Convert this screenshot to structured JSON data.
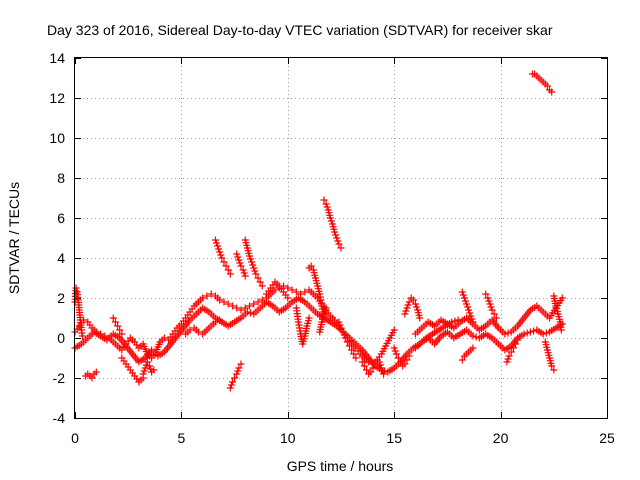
{
  "chart_data": {
    "type": "scatter",
    "title": "Day 323 of 2016, Sidereal Day-to-day VTEC variation (SDTVAR) for receiver skar",
    "xlabel": "GPS time / hours",
    "ylabel": "SDTVAR / TECUs",
    "xlim": [
      0,
      25
    ],
    "ylim": [
      -4,
      14
    ],
    "xticks": [
      0,
      5,
      10,
      15,
      20,
      25
    ],
    "yticks": [
      -4,
      -2,
      0,
      2,
      4,
      6,
      8,
      10,
      12,
      14
    ],
    "grid": true,
    "legend": "none",
    "marker": "plus",
    "series": [
      {
        "name": "SDTVAR",
        "color": "#ff0000",
        "segments": [
          {
            "x": [
              0.0,
              0.05,
              0.1,
              0.15,
              0.2,
              0.25,
              0.3,
              0.35
            ],
            "y": [
              1.8,
              2.5,
              2.3,
              1.9,
              1.4,
              0.9,
              0.4,
              0.1
            ]
          },
          {
            "x": [
              0.0,
              0.2,
              0.4,
              0.6,
              0.8,
              1.0,
              1.2,
              1.4,
              1.6,
              1.8,
              2.0,
              2.2,
              2.4,
              2.6,
              2.8,
              3.0,
              3.2,
              3.4,
              3.6,
              3.8,
              4.0,
              4.2,
              4.4,
              4.6,
              4.8,
              5.0,
              5.2,
              5.4,
              5.6,
              5.8,
              6.0,
              6.2,
              6.4,
              6.6,
              6.8,
              7.0,
              7.2,
              7.4,
              7.6,
              7.8,
              8.0,
              8.2,
              8.4,
              8.6,
              8.8,
              9.0,
              9.2,
              9.4,
              9.6,
              9.8,
              10.0,
              10.2,
              10.4,
              10.6,
              10.8,
              11.0,
              11.2,
              11.4,
              11.6,
              11.8,
              12.0,
              12.2,
              12.4,
              12.6,
              12.8,
              13.0,
              13.2,
              13.4,
              13.6,
              13.8,
              14.0,
              14.2,
              14.4,
              14.6,
              14.8,
              15.0
            ],
            "y": [
              0.3,
              0.6,
              0.9,
              0.8,
              0.5,
              0.3,
              0.2,
              0.1,
              0.0,
              -0.2,
              -0.4,
              -0.6,
              -0.3,
              0.0,
              -0.2,
              -0.5,
              -0.3,
              -0.8,
              -1.0,
              -0.7,
              -0.2,
              0.0,
              -0.1,
              0.2,
              0.5,
              0.7,
              1.0,
              1.3,
              1.6,
              1.8,
              2.0,
              2.1,
              2.2,
              2.1,
              1.9,
              1.8,
              1.7,
              1.6,
              1.5,
              1.4,
              1.5,
              1.6,
              1.7,
              1.8,
              1.9,
              2.0,
              2.2,
              2.4,
              2.5,
              2.6,
              2.5,
              2.4,
              2.3,
              2.2,
              2.3,
              2.4,
              2.2,
              2.0,
              1.7,
              1.4,
              1.1,
              0.9,
              0.6,
              0.3,
              0.0,
              -0.3,
              -0.5,
              -0.8,
              -1.0,
              -1.2,
              -1.3,
              -1.1,
              -0.8,
              -0.4,
              0.0,
              0.4
            ]
          },
          {
            "x": [
              0.0,
              0.3,
              0.6,
              0.9,
              1.2,
              1.5,
              1.8,
              2.1,
              2.4,
              2.7,
              3.0,
              3.3,
              3.6,
              3.9,
              4.2,
              4.5,
              4.8,
              5.1,
              5.4,
              5.7,
              6.0,
              6.3,
              6.6,
              6.9,
              7.2,
              7.5,
              7.8,
              8.1,
              8.4,
              8.7,
              9.0,
              9.3,
              9.6,
              9.9,
              10.2,
              10.5,
              10.8,
              11.1,
              11.4,
              11.7,
              12.0,
              12.3,
              12.6,
              12.9,
              13.2,
              13.5,
              13.8,
              14.1,
              14.4,
              14.7,
              15.0,
              15.3,
              15.6,
              15.9,
              16.2,
              16.5,
              16.8,
              17.1,
              17.4,
              17.7,
              18.0
            ],
            "y": [
              -0.5,
              -0.3,
              0.0,
              0.3,
              0.1,
              -0.1,
              0.2,
              0.0,
              -0.4,
              -0.8,
              -1.2,
              -1.0,
              -0.6,
              -0.9,
              -0.7,
              -0.3,
              0.1,
              0.5,
              0.9,
              1.2,
              1.5,
              1.3,
              1.0,
              0.8,
              0.6,
              0.8,
              1.0,
              1.3,
              1.2,
              1.5,
              1.8,
              1.6,
              1.3,
              1.5,
              1.8,
              2.0,
              1.8,
              1.5,
              1.2,
              1.0,
              0.8,
              0.6,
              0.3,
              0.0,
              -0.3,
              -0.6,
              -1.0,
              -1.4,
              -1.6,
              -1.7,
              -1.5,
              -1.2,
              -0.8,
              -0.5,
              -0.3,
              0.0,
              0.2,
              0.4,
              0.6,
              0.8,
              0.9
            ]
          },
          {
            "x": [
              0.5,
              0.6,
              0.7,
              0.8,
              0.9,
              1.0
            ],
            "y": [
              -1.9,
              -1.8,
              -1.9,
              -2.0,
              -1.8,
              -1.7
            ]
          },
          {
            "x": [
              1.8,
              1.9,
              2.0,
              2.1,
              2.2
            ],
            "y": [
              1.0,
              0.8,
              0.6,
              0.4,
              0.2
            ]
          },
          {
            "x": [
              2.2,
              2.4,
              2.6,
              2.8,
              3.0,
              3.2
            ],
            "y": [
              -1.0,
              -1.3,
              -1.6,
              -1.9,
              -2.2,
              -2.0
            ]
          },
          {
            "x": [
              3.2,
              3.3,
              3.4,
              3.5,
              3.6,
              3.7
            ],
            "y": [
              -1.8,
              -1.5,
              -1.2,
              -1.4,
              -1.7,
              -1.6
            ]
          },
          {
            "x": [
              5.2,
              5.4,
              5.6,
              5.8,
              6.0,
              6.2,
              6.4,
              6.6,
              6.8
            ],
            "y": [
              0.2,
              0.4,
              0.5,
              0.3,
              0.2,
              0.4,
              0.6,
              0.8,
              0.9
            ]
          },
          {
            "x": [
              6.6,
              6.7,
              6.8,
              6.9,
              7.0,
              7.1,
              7.2,
              7.3
            ],
            "y": [
              4.9,
              4.6,
              4.3,
              4.0,
              3.8,
              3.6,
              3.4,
              3.2
            ]
          },
          {
            "x": [
              7.3,
              7.4,
              7.5,
              7.6,
              7.7,
              7.8
            ],
            "y": [
              -2.5,
              -2.2,
              -2.0,
              -1.8,
              -1.5,
              -1.3
            ]
          },
          {
            "x": [
              7.6,
              7.7,
              7.8,
              7.9,
              8.0
            ],
            "y": [
              4.2,
              3.9,
              3.6,
              3.4,
              3.1
            ]
          },
          {
            "x": [
              8.0,
              8.1,
              8.2,
              8.3,
              8.4,
              8.5,
              8.6,
              8.7,
              8.8
            ],
            "y": [
              4.9,
              4.5,
              4.1,
              3.8,
              3.5,
              3.2,
              3.0,
              2.8,
              2.6
            ]
          },
          {
            "x": [
              9.0,
              9.2,
              9.4,
              9.6,
              9.8,
              10.0
            ],
            "y": [
              2.2,
              2.5,
              2.8,
              2.6,
              2.3,
              2.0
            ]
          },
          {
            "x": [
              10.4,
              10.5,
              10.6,
              10.7,
              10.8,
              10.9,
              11.0
            ],
            "y": [
              1.5,
              0.8,
              0.2,
              -0.3,
              0.1,
              0.6,
              1.0
            ]
          },
          {
            "x": [
              11.0,
              11.1,
              11.2,
              11.3,
              11.4,
              11.5,
              11.6,
              11.7
            ],
            "y": [
              3.5,
              3.6,
              3.4,
              3.0,
              2.6,
              2.2,
              1.6,
              1.0
            ]
          },
          {
            "x": [
              11.5,
              11.6,
              11.7,
              11.8
            ],
            "y": [
              0.3,
              0.8,
              1.2,
              1.5
            ]
          },
          {
            "x": [
              11.7,
              11.8,
              11.9,
              12.0,
              12.1,
              12.2,
              12.3,
              12.4,
              12.5
            ],
            "y": [
              6.9,
              6.7,
              6.4,
              6.0,
              5.7,
              5.3,
              5.0,
              4.7,
              4.5
            ]
          },
          {
            "x": [
              12.4,
              12.5,
              12.6,
              12.7,
              12.8,
              12.9,
              13.0,
              13.1,
              13.2
            ],
            "y": [
              0.8,
              0.5,
              0.3,
              0.0,
              -0.2,
              -0.4,
              -0.6,
              -0.8,
              -1.0
            ]
          },
          {
            "x": [
              13.5,
              13.6,
              13.7,
              13.8,
              13.9,
              14.0,
              14.1,
              14.2,
              14.3,
              14.4,
              14.5
            ],
            "y": [
              -1.2,
              -1.4,
              -1.6,
              -1.8,
              -1.7,
              -1.5,
              -1.3,
              -1.1,
              -1.2,
              -1.5,
              -1.8
            ]
          },
          {
            "x": [
              15.5,
              15.6,
              15.7,
              15.8,
              15.9,
              16.0,
              16.1,
              16.2
            ],
            "y": [
              1.2,
              1.5,
              1.8,
              2.0,
              1.9,
              1.7,
              1.4,
              1.0
            ]
          },
          {
            "x": [
              15.0,
              15.1,
              15.2,
              15.3,
              15.4,
              15.5,
              15.6,
              15.7
            ],
            "y": [
              -0.5,
              -0.8,
              -1.0,
              -1.2,
              -1.4,
              -1.3,
              -1.1,
              -0.9
            ]
          },
          {
            "x": [
              16.0,
              16.3,
              16.6,
              16.9,
              17.2,
              17.5,
              17.8,
              18.1,
              18.4,
              18.7,
              19.0,
              19.3,
              19.6,
              19.9,
              20.2,
              20.5,
              20.8,
              21.1,
              21.4,
              21.7,
              22.0,
              22.3,
              22.6,
              22.9
            ],
            "y": [
              0.2,
              0.5,
              0.8,
              0.6,
              0.9,
              0.7,
              0.5,
              0.8,
              1.0,
              0.7,
              0.4,
              0.6,
              0.9,
              0.5,
              0.2,
              0.3,
              0.6,
              1.0,
              1.4,
              1.6,
              1.3,
              1.0,
              1.5,
              2.0
            ]
          },
          {
            "x": [
              16.0,
              16.3,
              16.6,
              16.9,
              17.2,
              17.5,
              17.8,
              18.1,
              18.4,
              18.7,
              19.0,
              19.3,
              19.6,
              19.9,
              20.2,
              20.5,
              20.8,
              21.1,
              21.4,
              21.7,
              22.0,
              22.3,
              22.6,
              22.9
            ],
            "y": [
              -0.5,
              -0.2,
              0.0,
              -0.3,
              0.1,
              0.3,
              0.0,
              0.2,
              0.4,
              0.1,
              0.0,
              0.2,
              0.0,
              -0.3,
              -0.6,
              -0.4,
              0.0,
              0.2,
              0.3,
              0.4,
              0.2,
              0.3,
              0.5,
              0.7
            ]
          },
          {
            "x": [
              18.2,
              18.3,
              18.4,
              18.5,
              18.6,
              18.7
            ],
            "y": [
              2.3,
              2.0,
              1.7,
              1.4,
              1.1,
              0.8
            ]
          },
          {
            "x": [
              18.2,
              18.3,
              18.4,
              18.5,
              18.6,
              18.7
            ],
            "y": [
              -1.1,
              -0.9,
              -0.8,
              -0.7,
              -0.6,
              -0.5
            ]
          },
          {
            "x": [
              19.3,
              19.4,
              19.5,
              19.6,
              19.7,
              19.8
            ],
            "y": [
              2.2,
              2.0,
              1.7,
              1.4,
              1.2,
              1.0
            ]
          },
          {
            "x": [
              20.3,
              20.4,
              20.5,
              20.6,
              20.7,
              20.8
            ],
            "y": [
              -1.2,
              -0.9,
              -0.7,
              -0.5,
              -0.3,
              -0.1
            ]
          },
          {
            "x": [
              21.5,
              21.6,
              21.7,
              21.8,
              21.9,
              22.0,
              22.1,
              22.2,
              22.3,
              22.4
            ],
            "y": [
              13.2,
              13.2,
              13.1,
              13.0,
              12.9,
              12.8,
              12.7,
              12.6,
              12.4,
              12.3
            ]
          },
          {
            "x": [
              22.1,
              22.2,
              22.3,
              22.4,
              22.5
            ],
            "y": [
              -0.2,
              -0.6,
              -1.0,
              -1.4,
              -1.6
            ]
          },
          {
            "x": [
              22.5,
              22.6,
              22.7,
              22.8,
              22.85
            ],
            "y": [
              2.1,
              1.6,
              1.2,
              0.8,
              0.4
            ]
          }
        ]
      }
    ]
  }
}
